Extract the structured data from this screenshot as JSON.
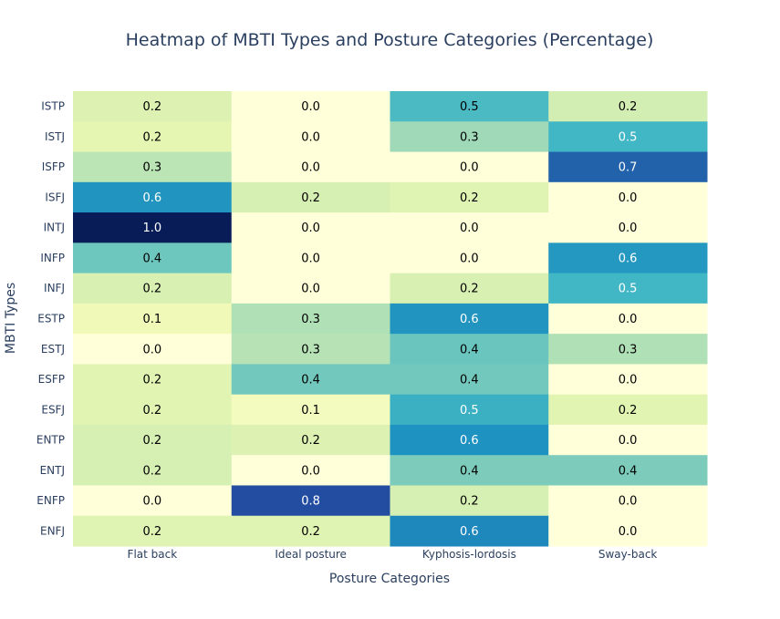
{
  "chart_data": {
    "type": "heatmap",
    "title": "Heatmap of MBTI Types and Posture Categories (Percentage)",
    "xlabel": "Posture Categories",
    "ylabel": "MBTI Types",
    "x_categories": [
      "Flat back",
      "Ideal posture",
      "Kyphosis-lordosis",
      "Sway-back"
    ],
    "y_categories": [
      "ISTP",
      "ISTJ",
      "ISFP",
      "ISFJ",
      "INTJ",
      "INFP",
      "INFJ",
      "ESTP",
      "ESTJ",
      "ESFP",
      "ESFJ",
      "ENTP",
      "ENTJ",
      "ENFP",
      "ENFJ"
    ],
    "values": [
      [
        0.2,
        0.0,
        0.5,
        0.2
      ],
      [
        0.2,
        0.0,
        0.3,
        0.5
      ],
      [
        0.3,
        0.0,
        0.0,
        0.7
      ],
      [
        0.6,
        0.2,
        0.2,
        0.0
      ],
      [
        1.0,
        0.0,
        0.0,
        0.0
      ],
      [
        0.4,
        0.0,
        0.0,
        0.6
      ],
      [
        0.2,
        0.0,
        0.2,
        0.5
      ],
      [
        0.1,
        0.3,
        0.6,
        0.0
      ],
      [
        0.0,
        0.3,
        0.4,
        0.3
      ],
      [
        0.2,
        0.4,
        0.4,
        0.0
      ],
      [
        0.2,
        0.1,
        0.5,
        0.2
      ],
      [
        0.2,
        0.2,
        0.6,
        0.0
      ],
      [
        0.2,
        0.0,
        0.4,
        0.4
      ],
      [
        0.0,
        0.8,
        0.2,
        0.0
      ],
      [
        0.2,
        0.2,
        0.6,
        0.0
      ]
    ],
    "precise_values": [
      [
        0.18,
        0.0,
        0.48,
        0.21
      ],
      [
        0.15,
        0.0,
        0.32,
        0.5
      ],
      [
        0.27,
        0.0,
        0.0,
        0.74
      ],
      [
        0.61,
        0.2,
        0.17,
        0.0
      ],
      [
        1.0,
        0.0,
        0.0,
        0.0
      ],
      [
        0.41,
        0.0,
        0.0,
        0.6
      ],
      [
        0.19,
        0.0,
        0.19,
        0.5
      ],
      [
        0.1,
        0.29,
        0.61,
        0.0
      ],
      [
        0.0,
        0.28,
        0.42,
        0.29
      ],
      [
        0.16,
        0.4,
        0.4,
        0.0
      ],
      [
        0.16,
        0.08,
        0.52,
        0.16
      ],
      [
        0.2,
        0.18,
        0.62,
        0.0
      ],
      [
        0.2,
        0.0,
        0.38,
        0.38
      ],
      [
        0.0,
        0.8,
        0.2,
        0.0
      ],
      [
        0.17,
        0.17,
        0.65,
        0.0
      ]
    ],
    "value_range": [
      0,
      1
    ],
    "colorscale": [
      "#ffffd9",
      "#edf8b1",
      "#c7e9b4",
      "#7fcdbb",
      "#41b6c4",
      "#1d91c0",
      "#225ea8",
      "#253494",
      "#081d58"
    ],
    "grid": false,
    "show_colorbar": false
  }
}
